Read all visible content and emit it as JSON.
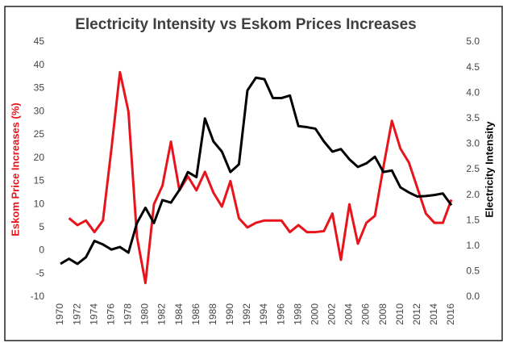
{
  "chart_data": {
    "type": "line",
    "title": "Electricity Intensity vs Eskom Prices Increases",
    "ylabel": "Eskom Price Increases (%)",
    "y2label": "Electricity Intensity",
    "x": [
      1970,
      1971,
      1972,
      1973,
      1974,
      1975,
      1976,
      1977,
      1978,
      1979,
      1980,
      1981,
      1982,
      1983,
      1984,
      1985,
      1986,
      1987,
      1988,
      1989,
      1990,
      1991,
      1992,
      1993,
      1994,
      1995,
      1996,
      1997,
      1998,
      1999,
      2000,
      2001,
      2002,
      2003,
      2004,
      2005,
      2006,
      2007,
      2008,
      2009,
      2010,
      2011,
      2012,
      2013,
      2014,
      2015,
      2016
    ],
    "xlim": [
      1970,
      2016
    ],
    "xticks": [
      1970,
      1972,
      1974,
      1976,
      1978,
      1980,
      1982,
      1984,
      1986,
      1988,
      1990,
      1992,
      1994,
      1996,
      1998,
      2000,
      2002,
      2004,
      2006,
      2008,
      2010,
      2012,
      2014,
      2016
    ],
    "ylim": [
      -10,
      45
    ],
    "yticks": [
      -10,
      -5,
      0,
      5,
      10,
      15,
      20,
      25,
      30,
      35,
      40,
      45
    ],
    "y2lim": [
      0,
      5
    ],
    "y2ticks": [
      {
        "value": 0,
        "label": "0.0"
      },
      0.5,
      {
        "value": 1,
        "label": "1.0"
      },
      1.5,
      {
        "value": 2,
        "label": "2.0"
      },
      2.5,
      {
        "value": 3,
        "label": "3.0"
      },
      3.5,
      {
        "value": 4,
        "label": "4.0"
      },
      4.5,
      {
        "value": 5,
        "label": "5.0"
      }
    ],
    "ylabel_color": "#e8141c",
    "y2label_color": "#000000",
    "series": [
      {
        "color": "#e8141c",
        "axis": "y",
        "values": [
          null,
          7,
          5.5,
          6.5,
          4,
          6.5,
          22,
          38.5,
          30,
          3,
          -7,
          10,
          14,
          23.5,
          13,
          16,
          13,
          17,
          12.5,
          9.5,
          15,
          7,
          5,
          6,
          6.5,
          6.5,
          6.5,
          4,
          5.5,
          4,
          4,
          4.2,
          8,
          -2,
          10,
          1.5,
          6,
          7.5,
          18,
          28,
          22,
          19,
          13.5,
          8,
          6,
          6,
          11
        ]
      },
      {
        "color": "#000000",
        "axis": "y2",
        "values": [
          0.65,
          0.75,
          0.65,
          0.78,
          1.1,
          1.03,
          0.93,
          0.98,
          0.87,
          1.45,
          1.75,
          1.45,
          1.9,
          1.85,
          2.1,
          2.45,
          2.35,
          3.5,
          3.05,
          2.85,
          2.45,
          2.6,
          4.05,
          4.3,
          4.27,
          3.9,
          3.9,
          3.95,
          3.35,
          3.33,
          3.3,
          3.05,
          2.85,
          2.9,
          2.7,
          2.55,
          2.62,
          2.75,
          2.45,
          2.48,
          2.15,
          2.05,
          1.97,
          1.98,
          2.0,
          2.03,
          1.8
        ]
      }
    ]
  }
}
